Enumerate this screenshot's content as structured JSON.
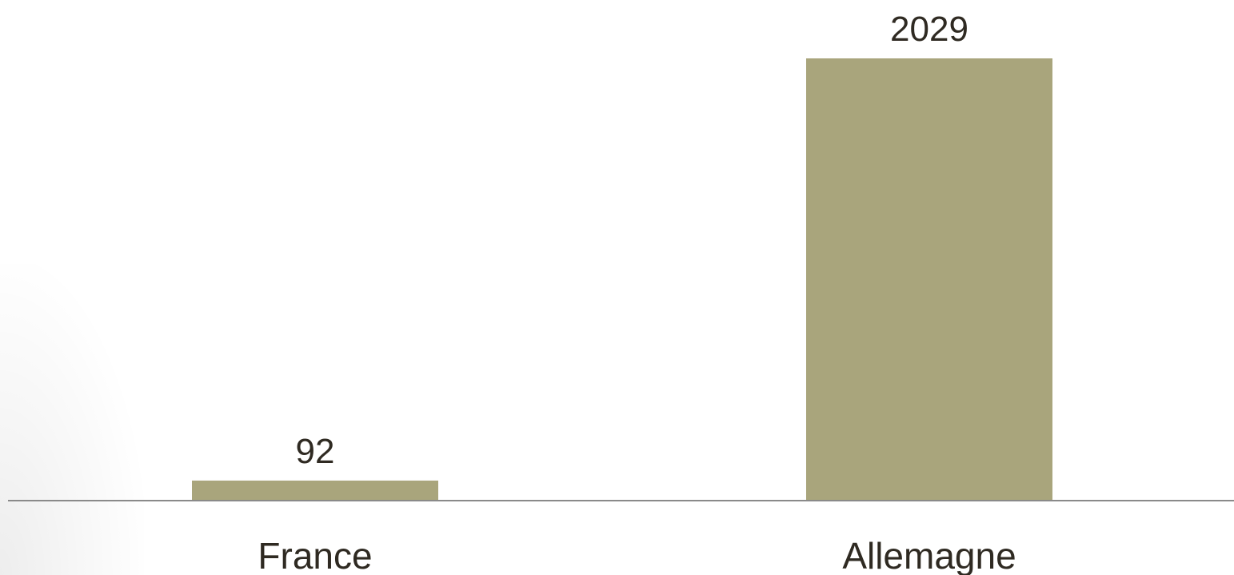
{
  "chart_data": {
    "type": "bar",
    "categories": [
      "France",
      "Allemagne"
    ],
    "values": [
      92,
      2029
    ],
    "data_labels": [
      "92",
      "2029"
    ],
    "title": "",
    "xlabel": "",
    "ylabel": "",
    "ylim": [
      0,
      2029
    ],
    "grid": false,
    "legend": "none",
    "colors": {
      "bar": "#a9a57c",
      "axis": "#8a8a8a",
      "text": "#2f2a22",
      "background": "#ffffff"
    }
  }
}
